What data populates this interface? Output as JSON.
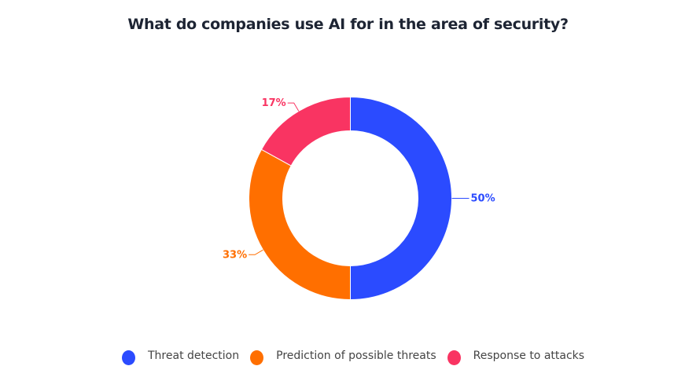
{
  "chart_data": {
    "type": "pie",
    "donut": true,
    "title": "What do companies use AI for in the area of security?",
    "categories": [
      "Threat detection",
      "Prediction of possible threats",
      "Response to attacks"
    ],
    "values": [
      50,
      33,
      17
    ],
    "labels": [
      "50%",
      "33%",
      "17%"
    ],
    "colors": [
      "#2B4BFF",
      "#FF6F00",
      "#F93462"
    ],
    "legend_position": "bottom"
  }
}
